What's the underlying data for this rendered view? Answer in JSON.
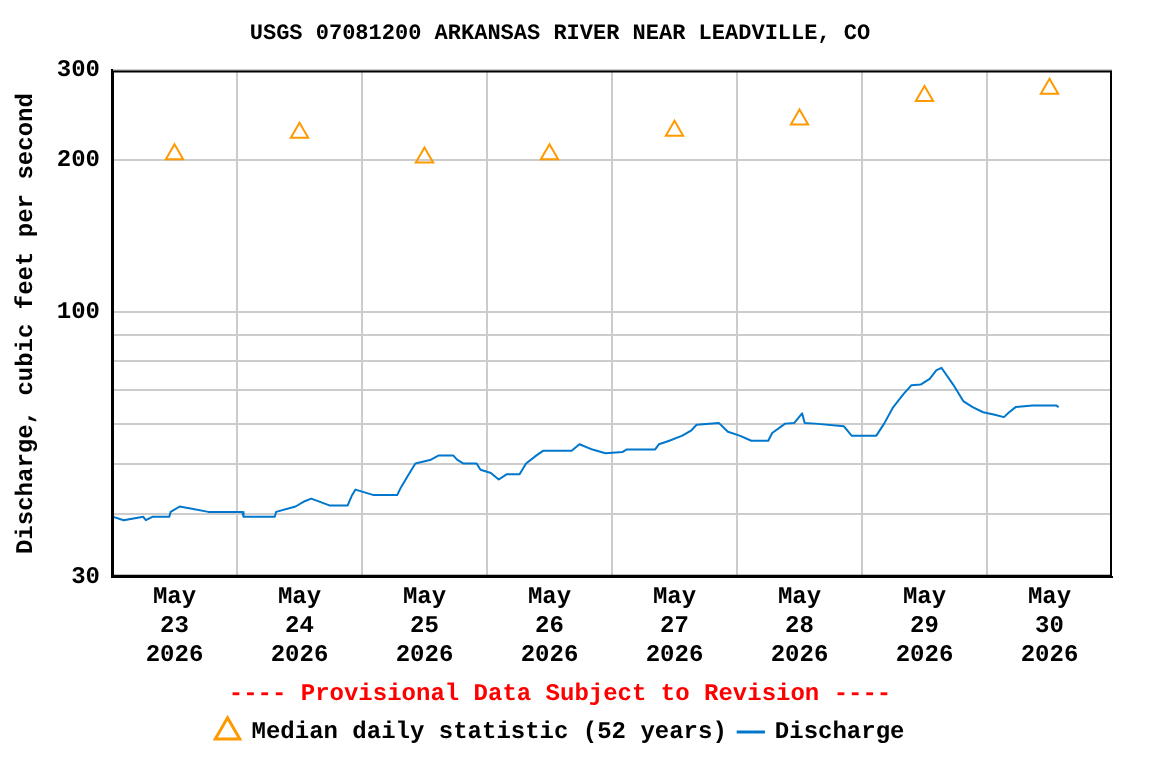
{
  "chart_data": {
    "type": "line",
    "title": "USGS 07081200 ARKANSAS RIVER NEAR LEADVILLE, CO",
    "ylabel": "Discharge, cubic feet per second",
    "log": "y",
    "grid": true,
    "legend": "bottom",
    "annotations": [
      "---- Provisional Data Subject to Revision ----"
    ],
    "xlim": [
      "2026-05-23T00:00",
      "2026-05-31T00:00"
    ],
    "xticks": [
      {
        "value": "2026-05-23T12:00",
        "label": "May 23 2026"
      },
      {
        "value": "2026-05-24T00:00",
        "label": null
      },
      {
        "value": "2026-05-24T12:00",
        "label": "May 24 2026"
      },
      {
        "value": "2026-05-25T00:00",
        "label": null
      },
      {
        "value": "2026-05-25T12:00",
        "label": "May 25 2026"
      },
      {
        "value": "2026-05-26T00:00",
        "label": null
      },
      {
        "value": "2026-05-26T12:00",
        "label": "May 26 2026"
      },
      {
        "value": "2026-05-27T00:00",
        "label": null
      },
      {
        "value": "2026-05-27T12:00",
        "label": "May 27 2026"
      },
      {
        "value": "2026-05-28T00:00",
        "label": null
      },
      {
        "value": "2026-05-28T12:00",
        "label": "May 28 2026"
      },
      {
        "value": "2026-05-29T00:00",
        "label": null
      },
      {
        "value": "2026-05-29T12:00",
        "label": "May 29 2026"
      },
      {
        "value": "2026-05-30T00:00",
        "label": null
      },
      {
        "value": "2026-05-30T12:00",
        "label": "May 30 2026"
      }
    ],
    "ylim": [
      30,
      300
    ],
    "yticks": [
      30,
      {
        "value": 40,
        "label": null
      },
      {
        "value": 50,
        "label": null
      },
      {
        "value": 60,
        "label": null
      },
      {
        "value": 70,
        "label": null
      },
      {
        "value": 80,
        "label": null
      },
      {
        "value": 90,
        "label": null
      },
      100,
      200,
      300
    ],
    "series": [
      {
        "name": "Median daily statistic (52 years)",
        "type": "scatter",
        "marker": "triangle",
        "color": "#ff9900",
        "x": [
          "2026-05-23T12:00",
          "2026-05-24T12:00",
          "2026-05-25T12:00",
          "2026-05-26T12:00",
          "2026-05-27T12:00",
          "2026-05-28T12:00",
          "2026-05-29T12:00",
          "2026-05-30T12:00"
        ],
        "values": [
          205,
          226,
          202,
          205,
          228,
          240,
          267,
          276
        ]
      },
      {
        "name": "Discharge",
        "marker": "none",
        "color": "#0077cc",
        "x": [
          "2026-05-23T00:15",
          "2026-05-23T02:15",
          "2026-05-23T06:00",
          "2026-05-23T06:30",
          "2026-05-23T07:45",
          "2026-05-23T11:00",
          "2026-05-23T11:15",
          "2026-05-23T13:00",
          "2026-05-23T18:30",
          "2026-05-24T01:00",
          "2026-05-24T01:15",
          "2026-05-24T07:15",
          "2026-05-24T07:30",
          "2026-05-24T11:15",
          "2026-05-24T13:00",
          "2026-05-24T14:15",
          "2026-05-24T17:45",
          "2026-05-24T21:15",
          "2026-05-24T22:00",
          "2026-05-24T22:45",
          "2026-05-25T02:15",
          "2026-05-25T06:45",
          "2026-05-25T07:30",
          "2026-05-25T08:45",
          "2026-05-25T10:15",
          "2026-05-25T13:15",
          "2026-05-25T14:45",
          "2026-05-25T17:30",
          "2026-05-25T18:15",
          "2026-05-25T19:30",
          "2026-05-25T22:00",
          "2026-05-25T22:45",
          "2026-05-26T00:45",
          "2026-05-26T02:15",
          "2026-05-26T03:45",
          "2026-05-26T06:15",
          "2026-05-26T07:30",
          "2026-05-26T09:30",
          "2026-05-26T10:45",
          "2026-05-26T16:15",
          "2026-05-26T17:45",
          "2026-05-26T20:15",
          "2026-05-26T22:45",
          "2026-05-27T02:00",
          "2026-05-27T02:45",
          "2026-05-27T08:15",
          "2026-05-27T09:00",
          "2026-05-27T11:00",
          "2026-05-27T13:30",
          "2026-05-27T15:15",
          "2026-05-27T16:15",
          "2026-05-27T20:30",
          "2026-05-27T22:15",
          "2026-05-28T00:30",
          "2026-05-28T02:45",
          "2026-05-28T06:00",
          "2026-05-28T06:45",
          "2026-05-28T09:15",
          "2026-05-28T11:00",
          "2026-05-28T12:30",
          "2026-05-28T13:00",
          "2026-05-28T15:00",
          "2026-05-28T20:30",
          "2026-05-28T22:00",
          "2026-05-29T02:45",
          "2026-05-29T04:15",
          "2026-05-29T06:00",
          "2026-05-29T08:00",
          "2026-05-29T09:30",
          "2026-05-29T11:15",
          "2026-05-29T13:00",
          "2026-05-29T14:15",
          "2026-05-29T15:15",
          "2026-05-29T17:30",
          "2026-05-29T19:30",
          "2026-05-29T21:15",
          "2026-05-29T23:15",
          "2026-05-30T01:30",
          "2026-05-30T03:15",
          "2026-05-30T04:15",
          "2026-05-30T05:30",
          "2026-05-30T08:45",
          "2026-05-30T13:15",
          "2026-05-30T13:45"
        ],
        "values": [
          39.4,
          38.8,
          39.4,
          38.8,
          39.4,
          39.4,
          40.3,
          41.3,
          40.3,
          40.3,
          39.4,
          39.4,
          40.3,
          41.3,
          42.3,
          42.8,
          41.5,
          41.5,
          43.3,
          44.6,
          43.5,
          43.5,
          45.1,
          47.4,
          50.2,
          51.1,
          52.1,
          52.1,
          51.1,
          50.2,
          50.2,
          48.8,
          48.1,
          46.7,
          47.8,
          47.8,
          50.2,
          52.1,
          53.2,
          53.2,
          54.8,
          53.5,
          52.6,
          52.9,
          53.5,
          53.5,
          54.8,
          55.7,
          57,
          58.4,
          59.9,
          60.4,
          58,
          57,
          55.7,
          55.7,
          57.7,
          60.2,
          60.4,
          63.1,
          60.4,
          60.2,
          59.5,
          57,
          57,
          60.2,
          64.9,
          68.9,
          71.7,
          71.9,
          73.8,
          76.7,
          77.6,
          71.9,
          66.6,
          64.9,
          63.4,
          62.7,
          62,
          63.4,
          64.9,
          65.4,
          65.4,
          64.9
        ]
      }
    ]
  }
}
